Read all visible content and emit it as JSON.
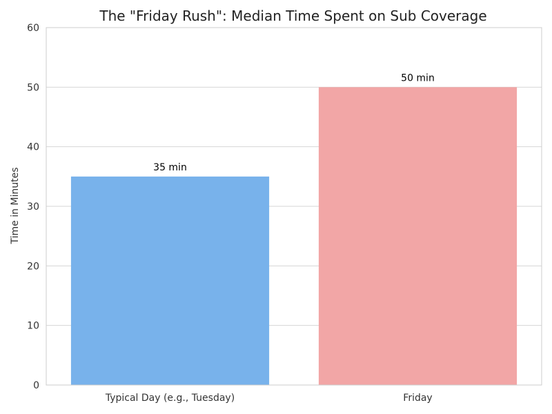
{
  "chart_data": {
    "type": "bar",
    "title": "The \"Friday Rush\": Median Time Spent on Sub Coverage",
    "xlabel": "",
    "ylabel": "Time in Minutes",
    "categories": [
      "Typical Day (e.g., Tuesday)",
      "Friday"
    ],
    "values": [
      35,
      50
    ],
    "data_labels": [
      "35 min",
      "50 min"
    ],
    "colors": [
      "#78b2eb",
      "#f2a6a6"
    ],
    "ylim": [
      0,
      60
    ],
    "yticks": [
      0,
      10,
      20,
      30,
      40,
      50,
      60
    ],
    "grid": "horizontal",
    "legend": "none"
  }
}
